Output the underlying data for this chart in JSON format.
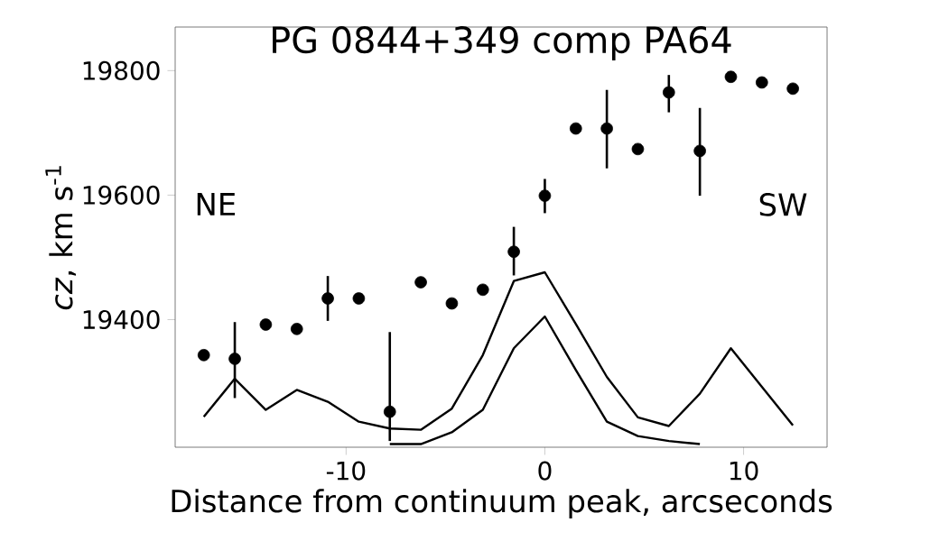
{
  "chart_data": {
    "type": "scatter",
    "title": "PG 0844+349 comp PA64",
    "xlabel": "Distance from continuum peak, arcseconds",
    "ylabel": "*cz*, km s$^{-1}$",
    "x": [
      -17.16,
      -15.6,
      -14.04,
      -12.48,
      -10.92,
      -9.36,
      -7.8,
      -6.24,
      -4.68,
      -3.12,
      -1.56,
      0,
      1.56,
      3.12,
      4.68,
      6.24,
      7.8,
      9.36,
      10.92,
      12.48
    ],
    "xlim": [
      -18.6,
      14.2
    ],
    "xticks": [
      -10,
      0,
      10
    ],
    "ylim": [
      19195,
      19870
    ],
    "yticks": [
      19400,
      19600,
      19800
    ],
    "grid": false,
    "series": [
      {
        "color": "#000000",
        "marker": "circle",
        "values": [
          19343,
          19337,
          19392,
          19385,
          19434,
          19434,
          19252,
          19460,
          19426,
          19448,
          19509,
          19599,
          19707,
          19707,
          19674,
          19765,
          19671,
          19790,
          19781,
          19771
        ],
        "errors": [
          null,
          [
            19274,
            19396
          ],
          null,
          null,
          [
            19398,
            19470
          ],
          null,
          [
            19205,
            19380
          ],
          null,
          null,
          null,
          [
            19471,
            19549
          ],
          [
            19571,
            19626
          ],
          [
            19699,
            19715
          ],
          [
            19643,
            19769
          ],
          null,
          [
            19733,
            19793
          ],
          [
            19599,
            19740
          ],
          null,
          null,
          null
        ]
      },
      {
        "type": "line",
        "color": "#000000",
        "marker": "none",
        "values": [
          19244,
          19305,
          19255,
          19287,
          19268,
          19236,
          19225,
          19223,
          19257,
          19343,
          19462,
          19476,
          19393,
          19308,
          19243,
          19229,
          19281,
          19354,
          19292,
          19230
        ]
      },
      {
        "type": "line",
        "color": "#000000",
        "marker": "none",
        "values": [
          null,
          null,
          null,
          null,
          null,
          null,
          19200,
          19200,
          19219,
          19255,
          19354,
          19405,
          19319,
          19236,
          19213,
          19205,
          19200,
          null,
          null,
          null
        ]
      }
    ],
    "annotations": [
      "NE",
      "SW"
    ]
  }
}
